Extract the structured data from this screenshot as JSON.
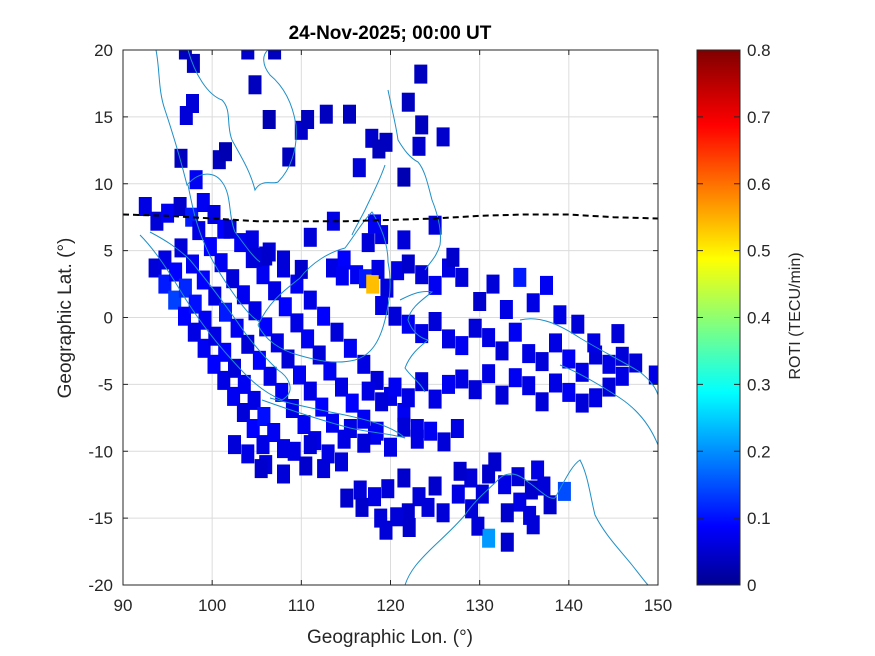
{
  "chart_data": {
    "type": "heatmap",
    "title": "24-Nov-2025; 00:00 UT",
    "xlabel": "Geographic Lon. (°)",
    "ylabel": "Geographic Lat. (°)",
    "xlim": [
      90,
      150
    ],
    "ylim": [
      -20,
      20
    ],
    "xticks": [
      90,
      100,
      110,
      120,
      130,
      140,
      150
    ],
    "yticks": [
      20,
      15,
      10,
      5,
      0,
      -5,
      -10,
      -15,
      -20
    ],
    "grid": true,
    "colorbar": {
      "label": "ROTI (TECU/min)",
      "range": [
        0,
        0.8
      ],
      "ticks": [
        0,
        0.1,
        0.2,
        0.3,
        0.4,
        0.5,
        0.6,
        0.7,
        0.8
      ],
      "colormap": "jet"
    },
    "magnetic_equator": {
      "style": "dashed black",
      "lon": [
        90,
        95,
        100,
        105,
        110,
        115,
        120,
        125,
        130,
        135,
        140,
        145,
        150
      ],
      "lat": [
        7.7,
        7.6,
        7.4,
        7.2,
        7.2,
        7.2,
        7.3,
        7.4,
        7.6,
        7.7,
        7.7,
        7.5,
        7.4
      ]
    },
    "notable_points": [
      {
        "lon": 118,
        "lat": 2.5,
        "roti": 0.55
      },
      {
        "lon": 131,
        "lat": -16.5,
        "roti": 0.22
      },
      {
        "lon": 139.5,
        "lat": -13,
        "roti": 0.16
      }
    ],
    "cells": [
      [
        92.5,
        8.3,
        0.08
      ],
      [
        93.8,
        7.2,
        0.07
      ],
      [
        95,
        7.8,
        0.09
      ],
      [
        96.4,
        8.3,
        0.06
      ],
      [
        97.7,
        7.5,
        0.12
      ],
      [
        99,
        8.6,
        0.09
      ],
      [
        100.2,
        7.7,
        0.08
      ],
      [
        101.3,
        6.6,
        0.1
      ],
      [
        96.5,
        11.9,
        0.05
      ],
      [
        98.2,
        10.3,
        0.09
      ],
      [
        100.8,
        11.8,
        0.05
      ],
      [
        97.1,
        15.1,
        0.07
      ],
      [
        97.8,
        16,
        0.07
      ],
      [
        101.5,
        12.4,
        0.04
      ],
      [
        104.8,
        17.4,
        0.05
      ],
      [
        106.4,
        14.8,
        0.04
      ],
      [
        108.6,
        12,
        0.05
      ],
      [
        110,
        14,
        0.06
      ],
      [
        112.8,
        15.2,
        0.05
      ],
      [
        116.5,
        11.2,
        0.07
      ],
      [
        117.9,
        13.4,
        0.06
      ],
      [
        119.5,
        13.1,
        0.05
      ],
      [
        121.5,
        10.5,
        0.04
      ],
      [
        123.2,
        12.8,
        0.06
      ],
      [
        122,
        16.1,
        0.05
      ],
      [
        123.4,
        18.2,
        0.05
      ],
      [
        125.9,
        13.5,
        0.06
      ],
      [
        97,
        20,
        0.05
      ],
      [
        104,
        20,
        0.06
      ],
      [
        107,
        20,
        0.05
      ],
      [
        123.5,
        14.4,
        0.05
      ],
      [
        118.7,
        12.6,
        0.05
      ],
      [
        97.9,
        19,
        0.05
      ],
      [
        110.7,
        14.8,
        0.05
      ],
      [
        115.4,
        15.2,
        0.05
      ],
      [
        93.6,
        3.7,
        0.07
      ],
      [
        94.7,
        2.5,
        0.12
      ],
      [
        95.8,
        1.3,
        0.15
      ],
      [
        96.9,
        0.1,
        0.1
      ],
      [
        98,
        -1.1,
        0.08
      ],
      [
        99.1,
        -2.3,
        0.09
      ],
      [
        100.2,
        -3.5,
        0.1
      ],
      [
        101.3,
        -4.7,
        0.08
      ],
      [
        102.4,
        -5.9,
        0.09
      ],
      [
        103.5,
        -7.1,
        0.07
      ],
      [
        104.6,
        -8.3,
        0.1
      ],
      [
        105.7,
        -9.5,
        0.08
      ],
      [
        94.7,
        4.3,
        0.08
      ],
      [
        95.9,
        3.4,
        0.1
      ],
      [
        97,
        2.2,
        0.13
      ],
      [
        98.1,
        1,
        0.11
      ],
      [
        99.2,
        -0.2,
        0.09
      ],
      [
        100.3,
        -1.4,
        0.08
      ],
      [
        101.4,
        -2.6,
        0.1
      ],
      [
        102.5,
        -3.8,
        0.07
      ],
      [
        103.6,
        -5,
        0.09
      ],
      [
        104.7,
        -6.2,
        0.08
      ],
      [
        105.8,
        -7.4,
        0.11
      ],
      [
        106.9,
        -8.6,
        0.09
      ],
      [
        108,
        -9.8,
        0.08
      ],
      [
        96.5,
        5.2,
        0.07
      ],
      [
        97.8,
        4,
        0.09
      ],
      [
        99,
        2.8,
        0.1
      ],
      [
        100.3,
        1.6,
        0.08
      ],
      [
        101.5,
        0.4,
        0.12
      ],
      [
        102.8,
        -0.8,
        0.09
      ],
      [
        104,
        -2,
        0.07
      ],
      [
        105.3,
        -3.2,
        0.1
      ],
      [
        106.5,
        -4.4,
        0.08
      ],
      [
        107.8,
        -5.6,
        0.09
      ],
      [
        109,
        -6.8,
        0.08
      ],
      [
        110.3,
        -8,
        0.09
      ],
      [
        111.5,
        -9.2,
        0.08
      ],
      [
        98.5,
        6.5,
        0.08
      ],
      [
        99.8,
        5.3,
        0.1
      ],
      [
        101,
        4.1,
        0.09
      ],
      [
        102.3,
        2.9,
        0.07
      ],
      [
        103.5,
        1.7,
        0.09
      ],
      [
        104.8,
        0.5,
        0.08
      ],
      [
        106,
        -0.7,
        0.1
      ],
      [
        107.3,
        -1.9,
        0.08
      ],
      [
        108.5,
        -3.1,
        0.07
      ],
      [
        109.8,
        -4.3,
        0.09
      ],
      [
        111,
        -5.5,
        0.08
      ],
      [
        112.3,
        -6.7,
        0.1
      ],
      [
        113.5,
        -7.9,
        0.09
      ],
      [
        114.8,
        -9.1,
        0.08
      ],
      [
        102,
        6.6,
        0.07
      ],
      [
        103.2,
        5.6,
        0.09
      ],
      [
        104.5,
        4.4,
        0.08
      ],
      [
        105.7,
        3.2,
        0.09
      ],
      [
        107,
        2,
        0.08
      ],
      [
        108.2,
        0.8,
        0.1
      ],
      [
        109.5,
        -0.4,
        0.08
      ],
      [
        110.7,
        -1.6,
        0.09
      ],
      [
        112,
        -2.8,
        0.07
      ],
      [
        113.2,
        -4,
        0.09
      ],
      [
        114.5,
        -5.2,
        0.08
      ],
      [
        115.7,
        -6.4,
        0.1
      ],
      [
        117,
        -7.6,
        0.09
      ],
      [
        118.2,
        -8.8,
        0.08
      ],
      [
        104.5,
        5.8,
        0.08
      ],
      [
        106.4,
        4.9,
        0.07
      ],
      [
        108,
        3.7,
        0.08
      ],
      [
        109.5,
        2.5,
        0.09
      ],
      [
        111,
        1.3,
        0.08
      ],
      [
        112.5,
        0.1,
        0.1
      ],
      [
        114,
        -1.1,
        0.07
      ],
      [
        115.5,
        -2.3,
        0.09
      ],
      [
        117,
        -3.5,
        0.08
      ],
      [
        118.5,
        -4.7,
        0.07
      ],
      [
        120,
        -5.9,
        0.08
      ],
      [
        121.5,
        -7.1,
        0.09
      ],
      [
        123,
        -8.3,
        0.08
      ],
      [
        106,
        4.6,
        0.06
      ],
      [
        108,
        4.3,
        0.07
      ],
      [
        110,
        3.6,
        0.06
      ],
      [
        113.5,
        3.7,
        0.08
      ],
      [
        114.8,
        4.3,
        0.1
      ],
      [
        116.2,
        3.2,
        0.09
      ],
      [
        117.2,
        2.9,
        0.12
      ],
      [
        118,
        2.5,
        0.55
      ],
      [
        118.6,
        3.6,
        0.08
      ],
      [
        119.6,
        2.2,
        0.07
      ],
      [
        120.8,
        3.5,
        0.08
      ],
      [
        122,
        4,
        0.06
      ],
      [
        123.5,
        3.2,
        0.07
      ],
      [
        125,
        2.4,
        0.09
      ],
      [
        126.5,
        3.7,
        0.08
      ],
      [
        128,
        3,
        0.07
      ],
      [
        127,
        4.5,
        0.06
      ],
      [
        121.5,
        5.8,
        0.07
      ],
      [
        119,
        6.2,
        0.08
      ],
      [
        117.5,
        5.6,
        0.07
      ],
      [
        118.2,
        7,
        0.09
      ],
      [
        125,
        6.9,
        0.07
      ],
      [
        113.6,
        7.2,
        0.08
      ],
      [
        111,
        6,
        0.07
      ],
      [
        104.8,
        4.5,
        0.07
      ],
      [
        114.6,
        3.1,
        0.09
      ],
      [
        119,
        0.9,
        0.08
      ],
      [
        120.5,
        0.1,
        0.07
      ],
      [
        122,
        -0.5,
        0.09
      ],
      [
        123.5,
        -1.2,
        0.08
      ],
      [
        125,
        -0.3,
        0.07
      ],
      [
        126.5,
        -1.6,
        0.08
      ],
      [
        128,
        -2.1,
        0.09
      ],
      [
        129.5,
        -0.8,
        0.07
      ],
      [
        131,
        -1.5,
        0.08
      ],
      [
        132.5,
        -2.5,
        0.07
      ],
      [
        134,
        -1.1,
        0.09
      ],
      [
        135.5,
        -2.7,
        0.08
      ],
      [
        137,
        -3.3,
        0.07
      ],
      [
        138.5,
        -1.9,
        0.08
      ],
      [
        140,
        -3.1,
        0.09
      ],
      [
        141.5,
        -4.1,
        0.08
      ],
      [
        143,
        -2.8,
        0.07
      ],
      [
        144.5,
        -3.5,
        0.08
      ],
      [
        146,
        -2.9,
        0.07
      ],
      [
        130,
        1.2,
        0.06
      ],
      [
        131.5,
        2.5,
        0.07
      ],
      [
        133,
        0.6,
        0.08
      ],
      [
        134.5,
        3,
        0.12
      ],
      [
        136,
        1.1,
        0.08
      ],
      [
        137.5,
        2.4,
        0.09
      ],
      [
        139,
        0.2,
        0.08
      ],
      [
        141,
        -0.5,
        0.07
      ],
      [
        142.8,
        -1.9,
        0.08
      ],
      [
        145.5,
        -1.2,
        0.07
      ],
      [
        117.5,
        -5.5,
        0.08
      ],
      [
        119,
        -6.3,
        0.07
      ],
      [
        120.5,
        -5.2,
        0.09
      ],
      [
        122,
        -6,
        0.08
      ],
      [
        123.5,
        -4.8,
        0.07
      ],
      [
        125,
        -6.1,
        0.08
      ],
      [
        126.5,
        -5,
        0.09
      ],
      [
        128,
        -4.6,
        0.08
      ],
      [
        129.5,
        -5.4,
        0.07
      ],
      [
        131,
        -4.2,
        0.08
      ],
      [
        132.5,
        -5.8,
        0.07
      ],
      [
        134,
        -4.5,
        0.09
      ],
      [
        135.5,
        -5.1,
        0.08
      ],
      [
        137,
        -6.3,
        0.07
      ],
      [
        138.5,
        -4.9,
        0.08
      ],
      [
        140,
        -5.6,
        0.09
      ],
      [
        141.5,
        -6.4,
        0.07
      ],
      [
        143,
        -6,
        0.08
      ],
      [
        144.5,
        -5.2,
        0.07
      ],
      [
        146,
        -4.4,
        0.08
      ],
      [
        147.5,
        -3.4,
        0.07
      ],
      [
        149.7,
        -4.3,
        0.08
      ],
      [
        115.5,
        -8.3,
        0.08
      ],
      [
        117,
        -9.4,
        0.07
      ],
      [
        118.5,
        -8.5,
        0.09
      ],
      [
        120,
        -9.7,
        0.08
      ],
      [
        121.5,
        -8.2,
        0.07
      ],
      [
        123,
        -9.1,
        0.08
      ],
      [
        124.5,
        -8.5,
        0.09
      ],
      [
        126,
        -9.3,
        0.07
      ],
      [
        127.5,
        -8.3,
        0.08
      ],
      [
        109.2,
        -10,
        0.08
      ],
      [
        111,
        -9.5,
        0.07
      ],
      [
        113,
        -10.2,
        0.08
      ],
      [
        106,
        -11,
        0.07
      ],
      [
        104,
        -10.2,
        0.08
      ],
      [
        102.5,
        -9.5,
        0.07
      ],
      [
        105.5,
        -11.3,
        0.06
      ],
      [
        108,
        -11.7,
        0.07
      ],
      [
        110.5,
        -11.1,
        0.06
      ],
      [
        112.5,
        -11.3,
        0.07
      ],
      [
        114.5,
        -10.8,
        0.07
      ],
      [
        131,
        -11.7,
        0.06
      ],
      [
        132.8,
        -12.5,
        0.08
      ],
      [
        134.3,
        -11.9,
        0.07
      ],
      [
        135.8,
        -12.9,
        0.06
      ],
      [
        136.5,
        -11.4,
        0.08
      ],
      [
        137.2,
        -12.6,
        0.07
      ],
      [
        131.7,
        -10.8,
        0.06
      ],
      [
        129,
        -12,
        0.07
      ],
      [
        127.6,
        -13.2,
        0.08
      ],
      [
        129.1,
        -14.3,
        0.07
      ],
      [
        133.1,
        -14.6,
        0.06
      ],
      [
        134.5,
        -13.8,
        0.08
      ],
      [
        135.6,
        -14.8,
        0.07
      ],
      [
        139.5,
        -13,
        0.16
      ],
      [
        131,
        -16.5,
        0.22
      ],
      [
        129.8,
        -15.6,
        0.07
      ],
      [
        133.1,
        -16.8,
        0.06
      ],
      [
        136,
        -15.5,
        0.07
      ],
      [
        137.9,
        -14,
        0.06
      ],
      [
        127.8,
        -11.5,
        0.06
      ],
      [
        130.3,
        -13.2,
        0.07
      ],
      [
        125,
        -12.6,
        0.06
      ],
      [
        123.2,
        -13.4,
        0.07
      ],
      [
        121.5,
        -12,
        0.06
      ],
      [
        119.7,
        -12.8,
        0.07
      ],
      [
        118.2,
        -13.4,
        0.08
      ],
      [
        116.6,
        -12.9,
        0.07
      ],
      [
        115.1,
        -13.5,
        0.06
      ],
      [
        124.2,
        -14.2,
        0.07
      ],
      [
        122,
        -14.6,
        0.06
      ],
      [
        120.7,
        -14.9,
        0.07
      ],
      [
        118.9,
        -15,
        0.07
      ],
      [
        116.8,
        -14.2,
        0.06
      ],
      [
        125.9,
        -14.6,
        0.07
      ],
      [
        122.1,
        -15.7,
        0.06
      ],
      [
        119.5,
        -15.9,
        0.07
      ]
    ]
  }
}
